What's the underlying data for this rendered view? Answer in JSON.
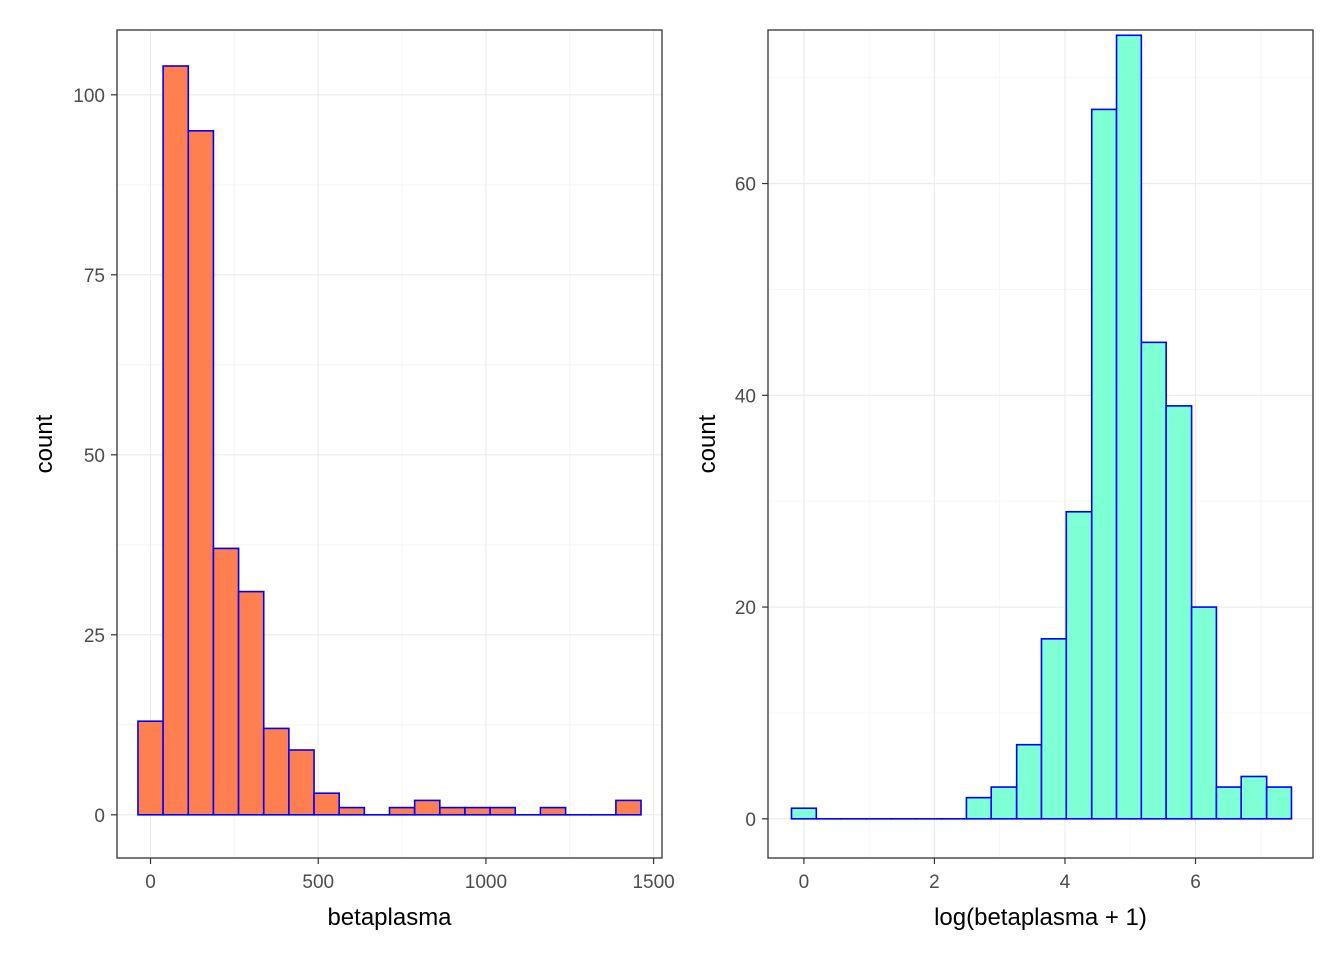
{
  "chart_data": [
    {
      "type": "bar",
      "subtype": "histogram",
      "xlabel": "betaplasma",
      "ylabel": "count",
      "fill_color": "#FF7F50",
      "outline_color": "#0000FF",
      "grid": true,
      "xlim": [
        -100,
        1525
      ],
      "ylim": [
        -6,
        109
      ],
      "x_ticks": [
        0,
        500,
        1000,
        1500
      ],
      "x_tick_labels": [
        "0",
        "500",
        "1000",
        "1500"
      ],
      "y_ticks": [
        0,
        25,
        50,
        75,
        100
      ],
      "y_tick_labels": [
        "0",
        "25",
        "50",
        "75",
        "100"
      ],
      "bins": [
        {
          "x0": -37.5,
          "x1": 37.5,
          "count": 13
        },
        {
          "x0": 37.5,
          "x1": 112.5,
          "count": 104
        },
        {
          "x0": 112.5,
          "x1": 187.5,
          "count": 95
        },
        {
          "x0": 187.5,
          "x1": 262.5,
          "count": 37
        },
        {
          "x0": 262.5,
          "x1": 337.5,
          "count": 31
        },
        {
          "x0": 337.5,
          "x1": 412.5,
          "count": 12
        },
        {
          "x0": 412.5,
          "x1": 487.5,
          "count": 9
        },
        {
          "x0": 487.5,
          "x1": 562.5,
          "count": 3
        },
        {
          "x0": 562.5,
          "x1": 637.5,
          "count": 1
        },
        {
          "x0": 637.5,
          "x1": 712.5,
          "count": 0
        },
        {
          "x0": 712.5,
          "x1": 787.5,
          "count": 1
        },
        {
          "x0": 787.5,
          "x1": 862.5,
          "count": 2
        },
        {
          "x0": 862.5,
          "x1": 937.5,
          "count": 1
        },
        {
          "x0": 937.5,
          "x1": 1012.5,
          "count": 1
        },
        {
          "x0": 1012.5,
          "x1": 1087.5,
          "count": 1
        },
        {
          "x0": 1087.5,
          "x1": 1162.5,
          "count": 0
        },
        {
          "x0": 1162.5,
          "x1": 1237.5,
          "count": 1
        },
        {
          "x0": 1237.5,
          "x1": 1312.5,
          "count": 0
        },
        {
          "x0": 1312.5,
          "x1": 1387.5,
          "count": 0
        },
        {
          "x0": 1387.5,
          "x1": 1462.5,
          "count": 2
        }
      ]
    },
    {
      "type": "bar",
      "subtype": "histogram",
      "xlabel": "log(betaplasma + 1)",
      "ylabel": "count",
      "fill_color": "#7FFFD4",
      "outline_color": "#0000FF",
      "grid": true,
      "xlim": [
        -0.55,
        7.8
      ],
      "ylim": [
        -3.7,
        74.5
      ],
      "x_ticks": [
        0,
        2,
        4,
        6
      ],
      "x_tick_labels": [
        "0",
        "2",
        "4",
        "6"
      ],
      "y_ticks": [
        0,
        20,
        40,
        60
      ],
      "y_tick_labels": [
        "0",
        "20",
        "40",
        "60"
      ],
      "bins": [
        {
          "x0": -0.19,
          "x1": 0.19,
          "count": 1
        },
        {
          "x0": 0.19,
          "x1": 0.57,
          "count": 0
        },
        {
          "x0": 0.57,
          "x1": 0.96,
          "count": 0
        },
        {
          "x0": 0.96,
          "x1": 1.34,
          "count": 0
        },
        {
          "x0": 1.34,
          "x1": 1.72,
          "count": 0
        },
        {
          "x0": 1.72,
          "x1": 2.11,
          "count": 0
        },
        {
          "x0": 2.11,
          "x1": 2.49,
          "count": 0
        },
        {
          "x0": 2.49,
          "x1": 2.87,
          "count": 2
        },
        {
          "x0": 2.87,
          "x1": 3.26,
          "count": 3
        },
        {
          "x0": 3.26,
          "x1": 3.64,
          "count": 7
        },
        {
          "x0": 3.64,
          "x1": 4.02,
          "count": 17
        },
        {
          "x0": 4.02,
          "x1": 4.41,
          "count": 29
        },
        {
          "x0": 4.41,
          "x1": 4.79,
          "count": 67
        },
        {
          "x0": 4.79,
          "x1": 5.17,
          "count": 74
        },
        {
          "x0": 5.17,
          "x1": 5.55,
          "count": 45
        },
        {
          "x0": 5.55,
          "x1": 5.94,
          "count": 39
        },
        {
          "x0": 5.94,
          "x1": 6.32,
          "count": 20
        },
        {
          "x0": 6.32,
          "x1": 6.7,
          "count": 3
        },
        {
          "x0": 6.7,
          "x1": 7.09,
          "count": 4
        },
        {
          "x0": 7.09,
          "x1": 7.47,
          "count": 3
        }
      ]
    }
  ]
}
